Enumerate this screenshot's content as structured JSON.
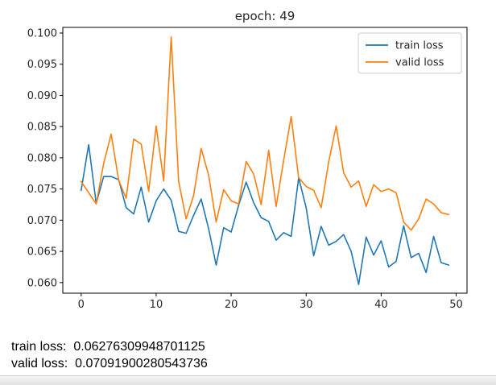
{
  "chart_data": {
    "type": "line",
    "title": "epoch: 49",
    "xlabel": "",
    "ylabel": "",
    "xlim": [
      -2.45,
      51.45
    ],
    "ylim": [
      0.0583,
      0.1009
    ],
    "xticks": [
      0,
      10,
      20,
      30,
      40,
      50
    ],
    "yticks": [
      0.06,
      0.065,
      0.07,
      0.075,
      0.08,
      0.085,
      0.09,
      0.095,
      0.1
    ],
    "ytick_labels": [
      "0.060",
      "0.065",
      "0.070",
      "0.075",
      "0.080",
      "0.085",
      "0.090",
      "0.095",
      "0.100"
    ],
    "grid": false,
    "legend_position": "top-right",
    "x": [
      0,
      1,
      2,
      3,
      4,
      5,
      6,
      7,
      8,
      9,
      10,
      11,
      12,
      13,
      14,
      15,
      16,
      17,
      18,
      19,
      20,
      21,
      22,
      23,
      24,
      25,
      26,
      27,
      28,
      29,
      30,
      31,
      32,
      33,
      34,
      35,
      36,
      37,
      38,
      39,
      40,
      41,
      42,
      43,
      44,
      45,
      46,
      47,
      48,
      49
    ],
    "series": [
      {
        "name": "train loss",
        "color": "#1f77b4",
        "values": [
          0.0748,
          0.0821,
          0.0727,
          0.077,
          0.077,
          0.0765,
          0.072,
          0.071,
          0.0753,
          0.0697,
          0.0731,
          0.075,
          0.0732,
          0.0682,
          0.0679,
          0.0708,
          0.0734,
          0.0686,
          0.0628,
          0.0688,
          0.0681,
          0.0724,
          0.0761,
          0.0728,
          0.0704,
          0.0698,
          0.0668,
          0.068,
          0.0674,
          0.0768,
          0.072,
          0.0643,
          0.069,
          0.066,
          0.0666,
          0.0677,
          0.065,
          0.0597,
          0.0673,
          0.0644,
          0.0667,
          0.0625,
          0.0634,
          0.0691,
          0.064,
          0.0647,
          0.0616,
          0.0674,
          0.0632,
          0.0628
        ]
      },
      {
        "name": "valid loss",
        "color": "#ff7f0e",
        "values": [
          0.0762,
          0.0744,
          0.0726,
          0.0791,
          0.0838,
          0.0764,
          0.0735,
          0.083,
          0.0822,
          0.0746,
          0.0851,
          0.0763,
          0.0994,
          0.0762,
          0.0702,
          0.074,
          0.0815,
          0.0772,
          0.0697,
          0.0749,
          0.0731,
          0.0726,
          0.0794,
          0.0774,
          0.0725,
          0.0812,
          0.0722,
          0.0796,
          0.0866,
          0.0768,
          0.0754,
          0.0748,
          0.072,
          0.0793,
          0.0851,
          0.0776,
          0.0753,
          0.0763,
          0.0722,
          0.0757,
          0.0746,
          0.075,
          0.0744,
          0.0697,
          0.0684,
          0.0702,
          0.0734,
          0.0726,
          0.0712,
          0.0709
        ]
      }
    ]
  },
  "output": {
    "lines": [
      "train loss:  0.06276309948701125",
      "valid loss:  0.07091900280543736"
    ]
  }
}
